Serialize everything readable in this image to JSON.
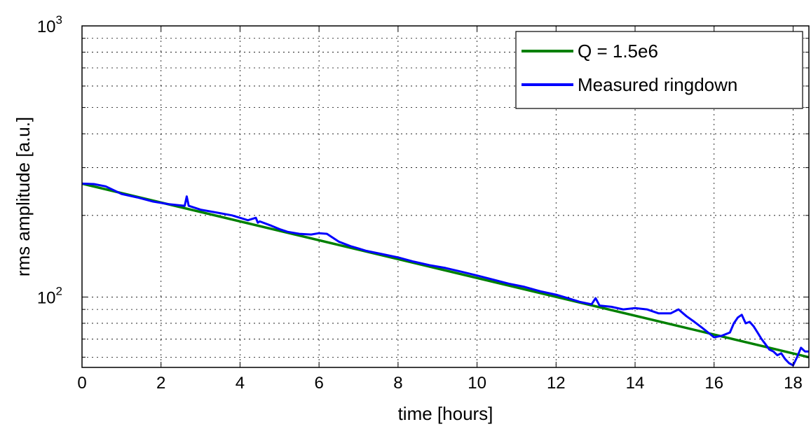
{
  "chart_data": {
    "type": "line",
    "title": "",
    "xlabel": "time [hours]",
    "ylabel": "rms amplitude [a.u.]",
    "xlim": [
      0,
      18.4
    ],
    "ylim": [
      55,
      1000
    ],
    "yscale": "log",
    "grid": true,
    "legend_position": "top-right",
    "x_ticks": [
      {
        "value": 0,
        "label": "0"
      },
      {
        "value": 2,
        "label": "2"
      },
      {
        "value": 4,
        "label": "4"
      },
      {
        "value": 6,
        "label": "6"
      },
      {
        "value": 8,
        "label": "8"
      },
      {
        "value": 10,
        "label": "10"
      },
      {
        "value": 12,
        "label": "12"
      },
      {
        "value": 14,
        "label": "14"
      },
      {
        "value": 16,
        "label": "16"
      },
      {
        "value": 18,
        "label": "18"
      }
    ],
    "y_ticks": [
      {
        "value": 100,
        "base": "10",
        "exp": "2"
      },
      {
        "value": 1000,
        "base": "10",
        "exp": "3"
      }
    ],
    "series": [
      {
        "name": "Q = 1.5e6",
        "color": "#008000",
        "x": [
          0,
          18.4
        ],
        "y": [
          262,
          60
        ]
      },
      {
        "name": "Measured ringdown",
        "color": "#0000ff",
        "x": [
          0,
          0.3,
          0.6,
          1.0,
          1.4,
          1.8,
          2.2,
          2.6,
          2.65,
          2.7,
          3.0,
          3.4,
          3.8,
          4.2,
          4.4,
          4.45,
          4.5,
          4.8,
          5.0,
          5.2,
          5.5,
          5.8,
          6.0,
          6.2,
          6.5,
          6.8,
          7.0,
          7.2,
          7.6,
          8.0,
          8.4,
          8.8,
          9.2,
          9.6,
          10.0,
          10.4,
          10.8,
          11.2,
          11.6,
          12.0,
          12.3,
          12.6,
          12.9,
          13.0,
          13.1,
          13.4,
          13.7,
          14.0,
          14.3,
          14.6,
          14.9,
          15.1,
          15.3,
          15.5,
          15.7,
          15.9,
          16.0,
          16.2,
          16.4,
          16.5,
          16.6,
          16.7,
          16.8,
          16.9,
          17.0,
          17.1,
          17.2,
          17.3,
          17.4,
          17.5,
          17.6,
          17.7,
          17.8,
          17.9,
          18.0,
          18.1,
          18.2,
          18.3,
          18.4
        ],
        "y": [
          262,
          261,
          256,
          240,
          233,
          225,
          220,
          217,
          235,
          217,
          210,
          205,
          200,
          192,
          196,
          188,
          190,
          183,
          178,
          174,
          171,
          170,
          172,
          171,
          160,
          154,
          151,
          148,
          144,
          140,
          135,
          131,
          128,
          124,
          120,
          116,
          112,
          109,
          105,
          102,
          99,
          96,
          94,
          99,
          93,
          92,
          90,
          91,
          90,
          87,
          87,
          90,
          85,
          81,
          77,
          73,
          71,
          72,
          74,
          80,
          84,
          86,
          80,
          81,
          78,
          74,
          70,
          67,
          64,
          63,
          61,
          62,
          59,
          57,
          56,
          60,
          65,
          63,
          63
        ]
      }
    ]
  }
}
